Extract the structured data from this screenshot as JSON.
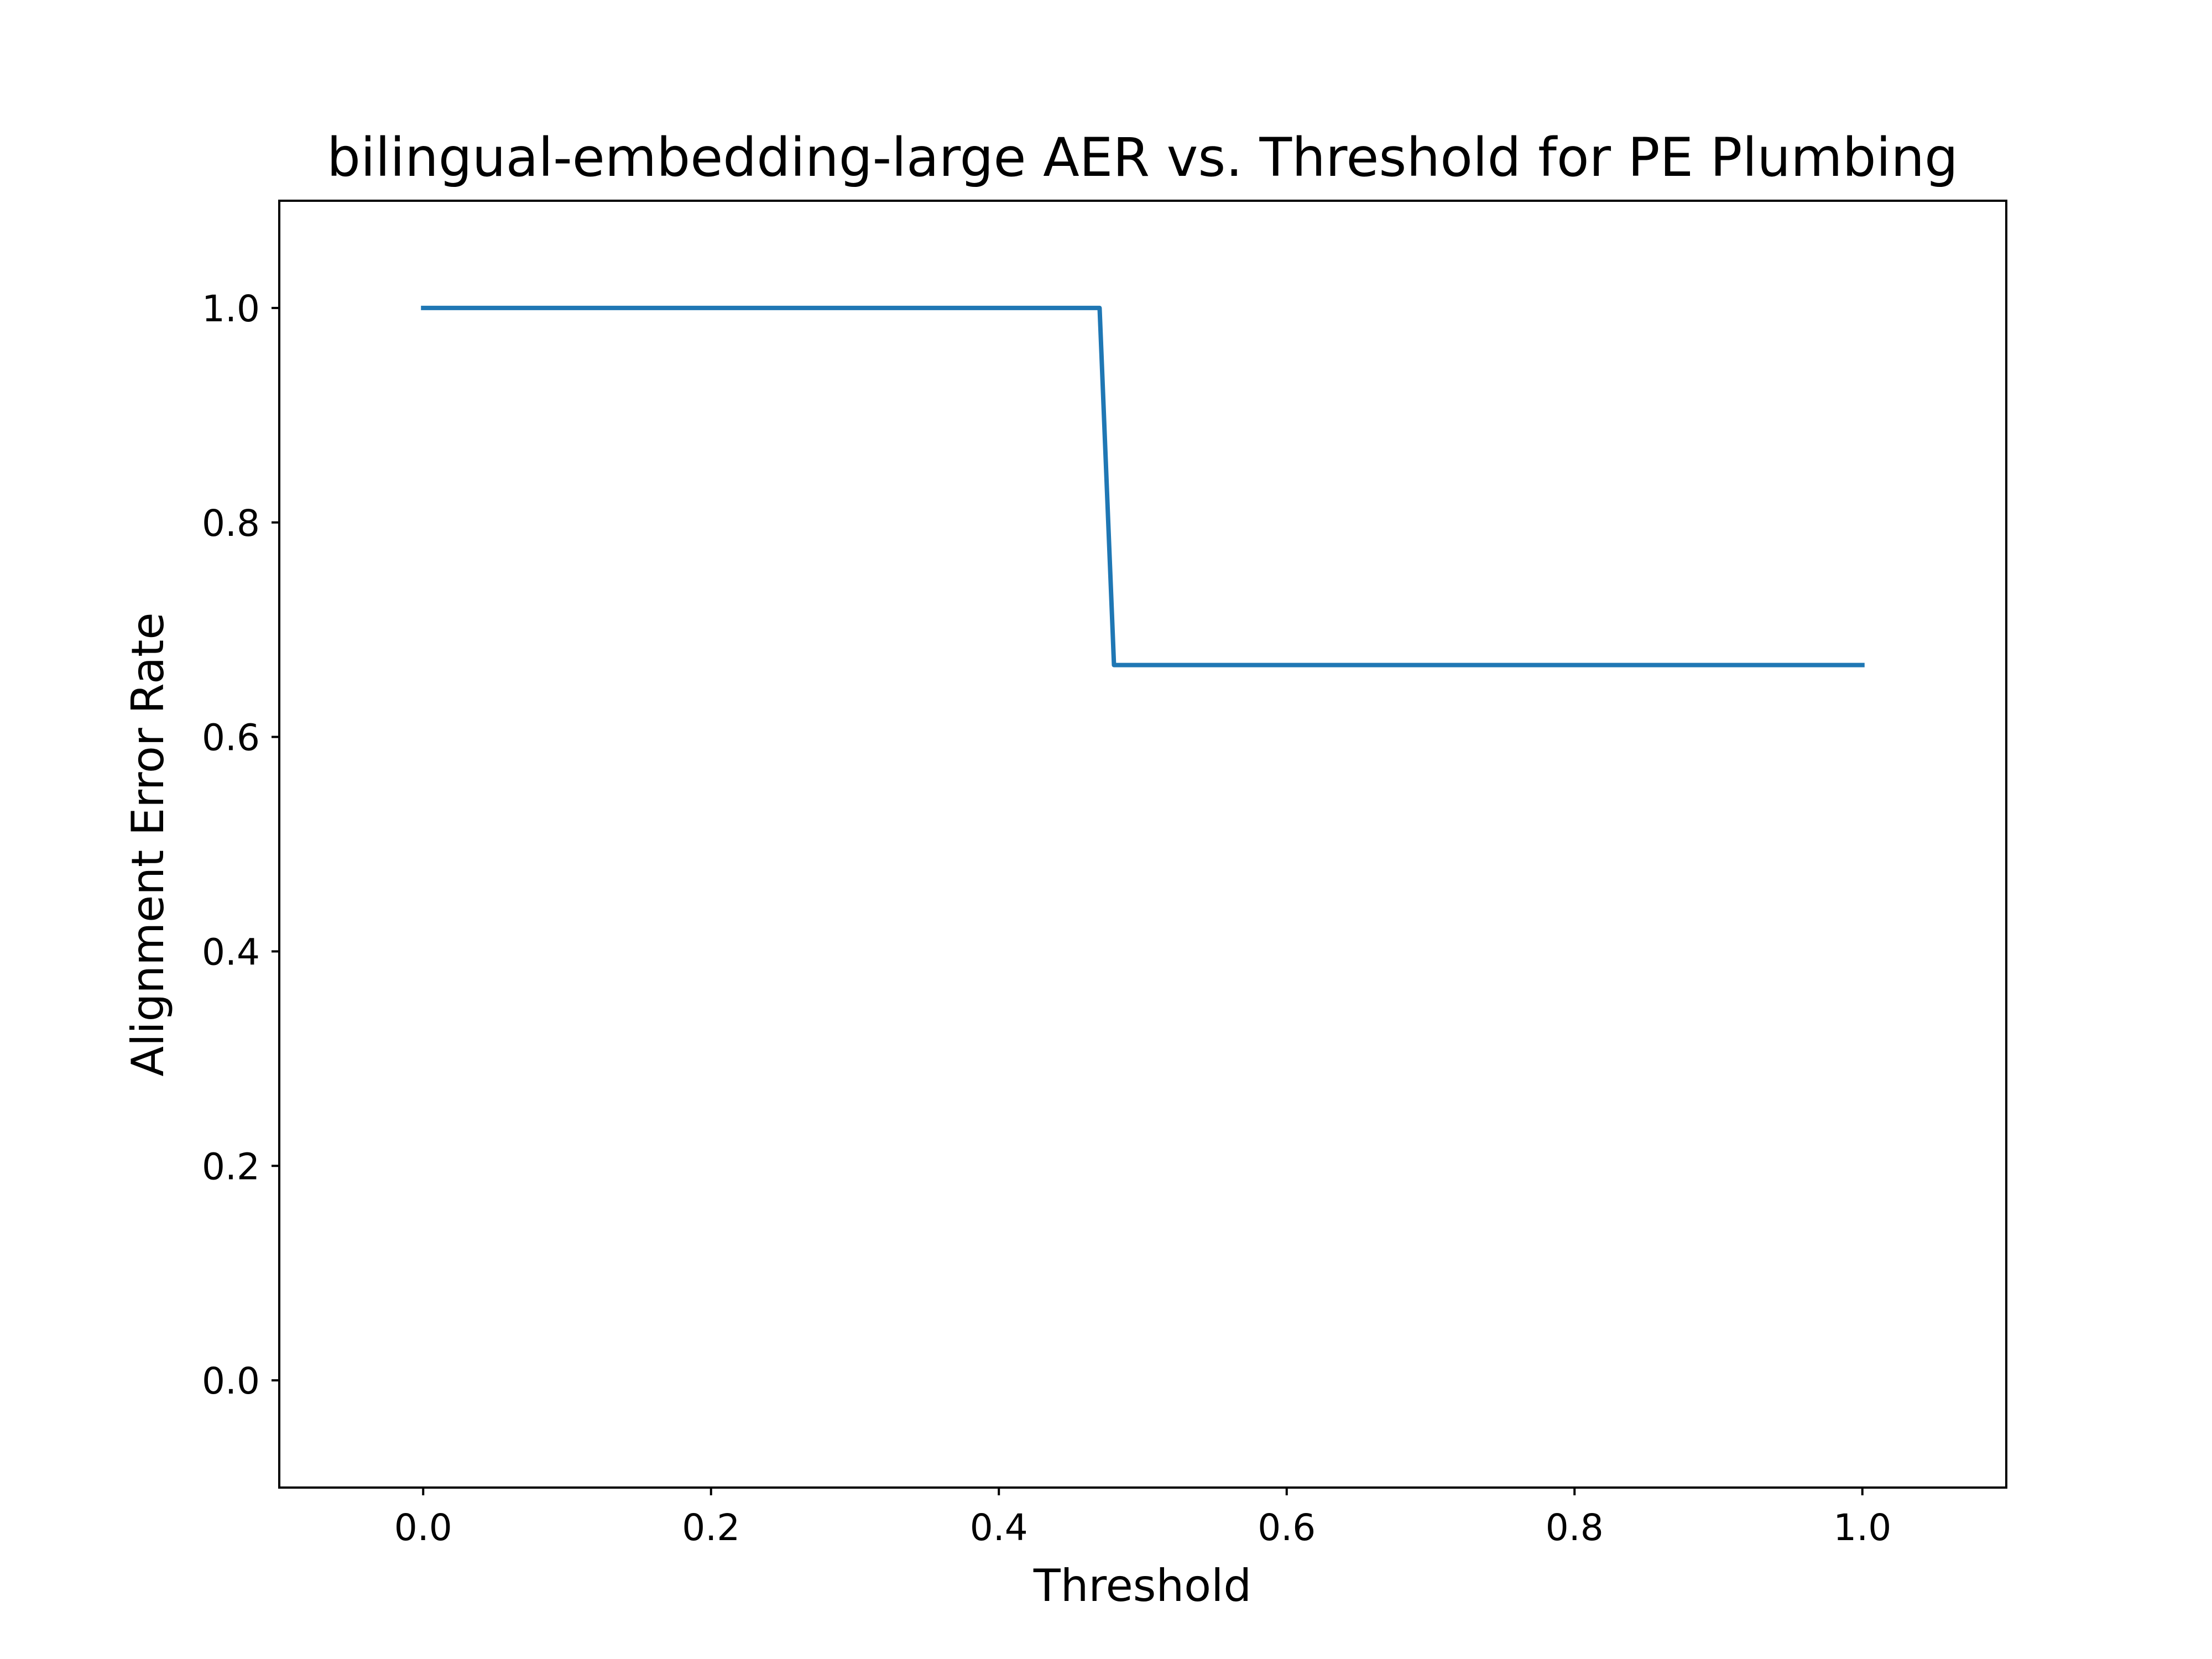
{
  "chart_data": {
    "type": "line",
    "title": "bilingual-embedding-large AER vs. Threshold for PE Plumbing",
    "xlabel": "Threshold",
    "ylabel": "Alignment Error Rate",
    "xlim": [
      -0.1,
      1.1
    ],
    "ylim": [
      -0.1,
      1.1
    ],
    "xticks": [
      0.0,
      0.2,
      0.4,
      0.6,
      0.8,
      1.0
    ],
    "xtick_labels": [
      "0.0",
      "0.2",
      "0.4",
      "0.6",
      "0.8",
      "1.0"
    ],
    "yticks": [
      0.0,
      0.2,
      0.4,
      0.6,
      0.8,
      1.0
    ],
    "ytick_labels": [
      "0.0",
      "0.2",
      "0.4",
      "0.6",
      "0.8",
      "1.0"
    ],
    "grid": false,
    "series": [
      {
        "color": "#1f77b4",
        "x": [
          0.0,
          0.01,
          0.02,
          0.03,
          0.04,
          0.05,
          0.06,
          0.07,
          0.08,
          0.09,
          0.1,
          0.11,
          0.12,
          0.13,
          0.14,
          0.15,
          0.16,
          0.17,
          0.18,
          0.19,
          0.2,
          0.21,
          0.22,
          0.23,
          0.24,
          0.25,
          0.26,
          0.27,
          0.28,
          0.29,
          0.3,
          0.31,
          0.32,
          0.33,
          0.34,
          0.35,
          0.36,
          0.37,
          0.38,
          0.39,
          0.4,
          0.41,
          0.42,
          0.43,
          0.44,
          0.45,
          0.46,
          0.47,
          0.48,
          0.49,
          0.5,
          0.51,
          0.52,
          0.53,
          0.54,
          0.55,
          0.56,
          0.57,
          0.58,
          0.59,
          0.6,
          0.61,
          0.62,
          0.63,
          0.64,
          0.65,
          0.66,
          0.67,
          0.68,
          0.69,
          0.7,
          0.71,
          0.72,
          0.73,
          0.74,
          0.75,
          0.76,
          0.77,
          0.78,
          0.79,
          0.8,
          0.81,
          0.82,
          0.83,
          0.84,
          0.85,
          0.86,
          0.87,
          0.88,
          0.89,
          0.9,
          0.91,
          0.92,
          0.93,
          0.94,
          0.95,
          0.96,
          0.97,
          0.98,
          0.99,
          1.0
        ],
        "y": [
          1.0,
          1.0,
          1.0,
          1.0,
          1.0,
          1.0,
          1.0,
          1.0,
          1.0,
          1.0,
          1.0,
          1.0,
          1.0,
          1.0,
          1.0,
          1.0,
          1.0,
          1.0,
          1.0,
          1.0,
          1.0,
          1.0,
          1.0,
          1.0,
          1.0,
          1.0,
          1.0,
          1.0,
          1.0,
          1.0,
          1.0,
          1.0,
          1.0,
          1.0,
          1.0,
          1.0,
          1.0,
          1.0,
          1.0,
          1.0,
          1.0,
          1.0,
          1.0,
          1.0,
          1.0,
          1.0,
          1.0,
          1.0,
          0.667,
          0.667,
          0.667,
          0.667,
          0.667,
          0.667,
          0.667,
          0.667,
          0.667,
          0.667,
          0.667,
          0.667,
          0.667,
          0.667,
          0.667,
          0.667,
          0.667,
          0.667,
          0.667,
          0.667,
          0.667,
          0.667,
          0.667,
          0.667,
          0.667,
          0.667,
          0.667,
          0.667,
          0.667,
          0.667,
          0.667,
          0.667,
          0.667,
          0.667,
          0.667,
          0.667,
          0.667,
          0.667,
          0.667,
          0.667,
          0.667,
          0.667,
          0.667,
          0.667,
          0.667,
          0.667,
          0.667,
          0.667,
          0.667,
          0.667,
          0.667,
          0.667,
          0.667
        ]
      }
    ]
  }
}
